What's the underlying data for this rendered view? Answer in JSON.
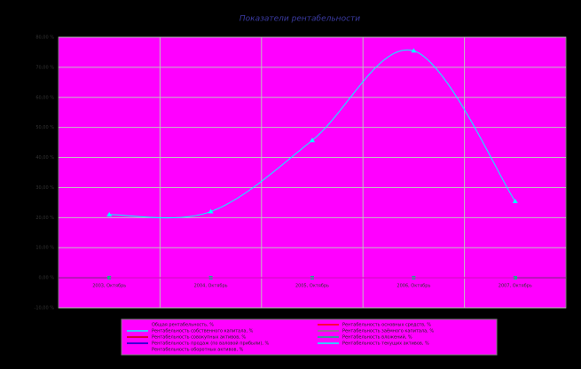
{
  "chart_data": {
    "type": "line",
    "title": "Показатели рентабельности",
    "categories": [
      "2003, Октябрь",
      "2004, Октябрь",
      "2005, Октябрь",
      "2006, Октябрь",
      "2007, Октябрь"
    ],
    "ylim": [
      -10,
      80
    ],
    "yticks": [
      {
        "value": -10,
        "label": "-10,00 %"
      },
      {
        "value": 0,
        "label": "0,00 %"
      },
      {
        "value": 10,
        "label": "10,00 %"
      },
      {
        "value": 20,
        "label": "20,00 %"
      },
      {
        "value": 30,
        "label": "30,00 %"
      },
      {
        "value": 40,
        "label": "40,00 %"
      },
      {
        "value": 50,
        "label": "50,00 %"
      },
      {
        "value": 60,
        "label": "60,00 %"
      },
      {
        "value": 70,
        "label": "70,00 %"
      },
      {
        "value": 80,
        "label": "80,00 %"
      }
    ],
    "grid": true,
    "series": [
      {
        "name": "Общая рентабельность, %",
        "color": "#ff00ff",
        "values": [
          0,
          0,
          0,
          0,
          0
        ]
      },
      {
        "name": "Рентабельность собственного капитала, %",
        "color": "#00ffff",
        "values": [
          21,
          22,
          45.7,
          75.5,
          25.4
        ]
      },
      {
        "name": "Рентабельность совокупных активов, %",
        "color": "#cc0000",
        "values": [
          0,
          0,
          0,
          0,
          0
        ]
      },
      {
        "name": "Рентабельность продаж (по валовой прибыли), %",
        "color": "#0000cc",
        "values": [
          0,
          0,
          0,
          0,
          0
        ]
      },
      {
        "name": "Рентабельность оборотных активов, %",
        "color": "#ff00ff",
        "values": [
          0,
          0,
          0,
          0,
          0
        ]
      },
      {
        "name": "Рентабельность основных средств, %",
        "color": "#ff0000",
        "values": [
          0,
          0,
          0,
          0,
          0
        ]
      },
      {
        "name": "Рентабельность заёмного капитала, %",
        "color": "#808080",
        "values": [
          0,
          0,
          0,
          0,
          0
        ]
      },
      {
        "name": "Рентабельность вложений, %",
        "color": "#00c080",
        "values": [
          0,
          0,
          0,
          0,
          0
        ]
      },
      {
        "name": "Рентабельность текущих активов, %",
        "color": "#00ffff",
        "values": [
          0,
          0,
          0,
          0,
          0
        ]
      }
    ]
  }
}
